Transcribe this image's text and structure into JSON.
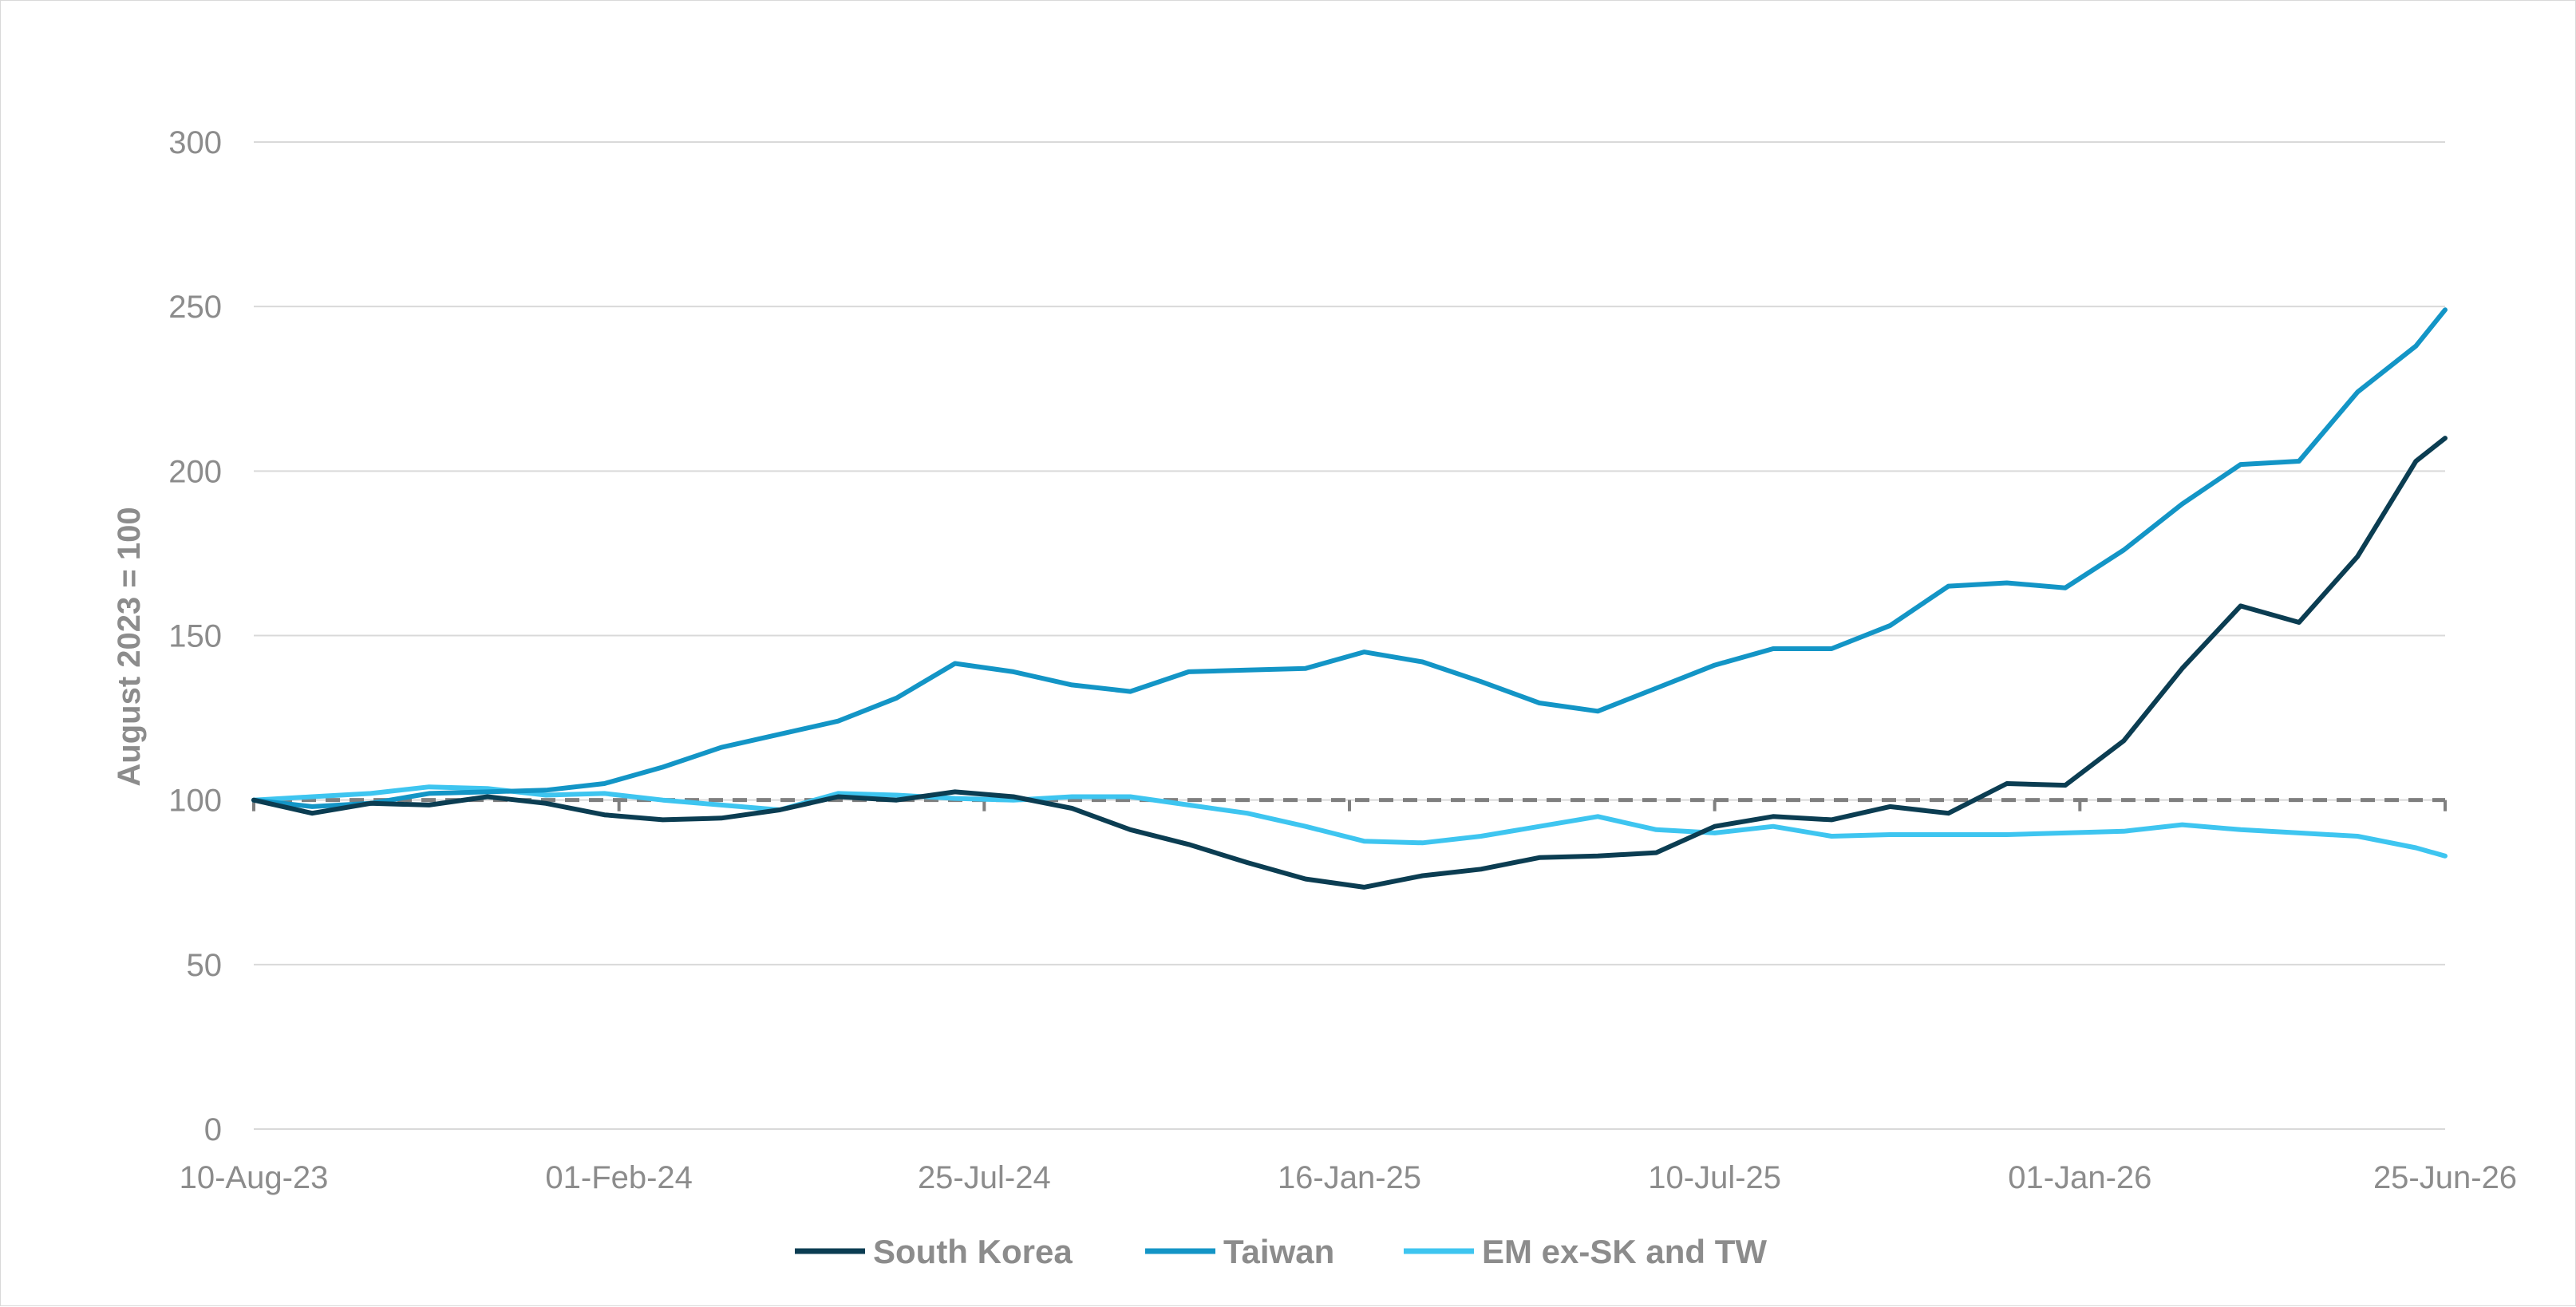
{
  "chart_data": {
    "type": "line",
    "ylabel": "August 2023 = 100",
    "xlabel": "",
    "title": "",
    "ylim": [
      0,
      300
    ],
    "yticks": [
      0,
      50,
      100,
      150,
      200,
      250,
      300
    ],
    "xlim": [
      "2023-08-10",
      "2026-06-25"
    ],
    "xtick_labels": [
      "10-Aug-23",
      "01-Feb-24",
      "25-Jul-24",
      "16-Jan-25",
      "10-Jul-25",
      "01-Jan-26",
      "25-Jun-26"
    ],
    "xtick_dates": [
      "2023-08-10",
      "2024-02-01",
      "2024-07-25",
      "2025-01-16",
      "2025-07-10",
      "2026-01-01",
      "2026-06-25"
    ],
    "grid": "horizontal",
    "legend_position": "bottom",
    "reference_line": {
      "y": 100,
      "style": "dashed",
      "color": "#7f7f7f"
    },
    "x": [
      "2023-08-10",
      "2023-09-07",
      "2023-10-05",
      "2023-11-02",
      "2023-11-30",
      "2023-12-28",
      "2024-01-25",
      "2024-02-22",
      "2024-03-21",
      "2024-04-18",
      "2024-05-16",
      "2024-06-13",
      "2024-07-11",
      "2024-08-08",
      "2024-09-05",
      "2024-10-03",
      "2024-10-31",
      "2024-11-28",
      "2024-12-26",
      "2025-01-23",
      "2025-02-20",
      "2025-03-20",
      "2025-04-17",
      "2025-05-15",
      "2025-06-12",
      "2025-07-10",
      "2025-08-07",
      "2025-09-04",
      "2025-10-02",
      "2025-10-30",
      "2025-11-27",
      "2025-12-25",
      "2026-01-22",
      "2026-02-19",
      "2026-03-19",
      "2026-04-16",
      "2026-05-14",
      "2026-06-11",
      "2026-06-25"
    ],
    "series": [
      {
        "name": "South Korea",
        "color": "#0b3d52",
        "values": [
          100,
          96,
          99,
          98.5,
          101,
          99,
          95.5,
          94,
          94.5,
          97,
          101,
          100,
          102.5,
          101,
          97.5,
          91,
          86.5,
          81,
          76,
          73.5,
          77,
          79,
          82.5,
          83,
          84,
          92,
          95,
          94,
          98,
          96,
          105,
          104.5,
          118,
          140,
          159,
          154,
          174,
          203,
          210
        ]
      },
      {
        "name": "Taiwan",
        "color": "#1395c6",
        "values": [
          100,
          98,
          99,
          102,
          102.5,
          103,
          105,
          110,
          116,
          120,
          124,
          131,
          141.5,
          139,
          135,
          133,
          139,
          139.5,
          140,
          145,
          142,
          136,
          129.5,
          127,
          134,
          141,
          146,
          146,
          153,
          165,
          166,
          164.5,
          176,
          190,
          202,
          203,
          224,
          238,
          249
        ]
      },
      {
        "name": "EM ex-SK and TW",
        "color": "#3ec5f0",
        "values": [
          100,
          101,
          102,
          104,
          103.5,
          101.5,
          102,
          100,
          98.5,
          97,
          102,
          101.5,
          100.5,
          100,
          101,
          101,
          98.5,
          96,
          92,
          87.5,
          87,
          89,
          92,
          95,
          91,
          90,
          92,
          89,
          89.5,
          89.5,
          89.5,
          90,
          90.5,
          92.5,
          91,
          90,
          89,
          85.5,
          83
        ]
      }
    ]
  }
}
